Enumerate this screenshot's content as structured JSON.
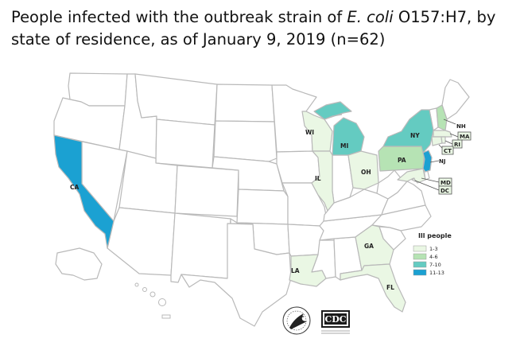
{
  "title": {
    "prefix": "People infected with the outbreak strain of ",
    "organism": "E. coli",
    "suffix": " O157:H7, by state of residence, as of January 9, 2019 (n=62)"
  },
  "legend": {
    "title": "Ill people",
    "items": [
      {
        "label": "1-3",
        "color": "#eaf7e4"
      },
      {
        "label": "4-6",
        "color": "#b6e3b4"
      },
      {
        "label": "7-10",
        "color": "#64cbc1"
      },
      {
        "label": "11-13",
        "color": "#1ba1d2"
      }
    ]
  },
  "colors": {
    "no_cases": "#ffffff",
    "border": "#b9b9b9"
  },
  "states": {
    "CA": {
      "label": "CA",
      "range": "11-13"
    },
    "NJ": {
      "label": "NJ",
      "range": "11-13"
    },
    "NY": {
      "label": "NY",
      "range": "7-10"
    },
    "MI": {
      "label": "MI",
      "range": "7-10"
    },
    "PA": {
      "label": "PA",
      "range": "4-6"
    },
    "NH": {
      "label": "NH",
      "range": "4-6"
    },
    "WI": {
      "label": "WI",
      "range": "1-3"
    },
    "IL": {
      "label": "IL",
      "range": "1-3"
    },
    "OH": {
      "label": "OH",
      "range": "1-3"
    },
    "GA": {
      "label": "GA",
      "range": "1-3"
    },
    "LA": {
      "label": "LA",
      "range": "1-3"
    },
    "FL": {
      "label": "FL",
      "range": "1-3"
    },
    "MA": {
      "label": "MA",
      "range": "1-3"
    },
    "RI": {
      "label": "RI",
      "range": "1-3"
    },
    "CT": {
      "label": "CT",
      "range": "1-3"
    },
    "MD": {
      "label": "MD",
      "range": "1-3"
    },
    "DC": {
      "label": "DC",
      "range": "1-3"
    }
  },
  "logos": {
    "cdc_text": "CDC"
  }
}
